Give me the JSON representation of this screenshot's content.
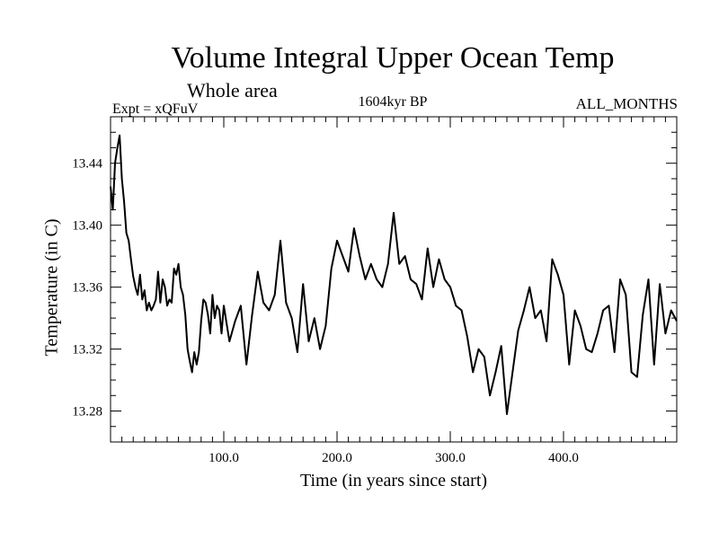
{
  "chart_data": {
    "type": "line",
    "title": "Volume Integral Upper Ocean Temp",
    "subtitle": "Whole area",
    "experiment": "Expt = xQFuV",
    "period": "1604kyr BP",
    "months": "ALL_MONTHS",
    "xlabel": "Time (in years since start)",
    "ylabel": "Temperature (in C)",
    "xlim": [
      0,
      500
    ],
    "ylim": [
      13.26,
      13.47
    ],
    "xticks": [
      100,
      200,
      300,
      400
    ],
    "xtick_labels": [
      "100.0",
      "200.0",
      "300.0",
      "400.0"
    ],
    "yticks": [
      13.28,
      13.32,
      13.36,
      13.4,
      13.44
    ],
    "ytick_labels": [
      "13.28",
      "13.32",
      "13.36",
      "13.40",
      "13.44"
    ],
    "grid": false,
    "series": [
      {
        "name": "Volume Integral Upper Ocean Temp",
        "x": [
          0,
          2,
          4,
          6,
          8,
          10,
          12,
          14,
          16,
          18,
          20,
          22,
          24,
          26,
          28,
          30,
          32,
          34,
          36,
          38,
          40,
          42,
          44,
          46,
          48,
          50,
          52,
          54,
          56,
          58,
          60,
          62,
          64,
          66,
          68,
          70,
          72,
          74,
          76,
          78,
          80,
          82,
          84,
          86,
          88,
          90,
          92,
          94,
          96,
          98,
          100,
          105,
          110,
          115,
          120,
          125,
          130,
          135,
          140,
          145,
          150,
          155,
          160,
          165,
          170,
          175,
          180,
          185,
          190,
          195,
          200,
          205,
          210,
          215,
          220,
          225,
          230,
          235,
          240,
          245,
          250,
          255,
          260,
          265,
          270,
          275,
          280,
          285,
          290,
          295,
          300,
          305,
          310,
          315,
          320,
          325,
          330,
          335,
          340,
          345,
          350,
          355,
          360,
          365,
          370,
          375,
          380,
          385,
          390,
          395,
          400,
          405,
          410,
          415,
          420,
          425,
          430,
          435,
          440,
          445,
          450,
          455,
          460,
          465,
          470,
          475,
          480,
          485,
          490,
          495,
          500
        ],
        "y": [
          13.425,
          13.41,
          13.44,
          13.45,
          13.458,
          13.43,
          13.415,
          13.395,
          13.39,
          13.378,
          13.367,
          13.36,
          13.355,
          13.368,
          13.352,
          13.358,
          13.345,
          13.35,
          13.345,
          13.348,
          13.352,
          13.37,
          13.35,
          13.365,
          13.36,
          13.348,
          13.352,
          13.35,
          13.372,
          13.368,
          13.375,
          13.36,
          13.355,
          13.342,
          13.32,
          13.312,
          13.305,
          13.318,
          13.31,
          13.318,
          13.338,
          13.352,
          13.35,
          13.342,
          13.33,
          13.355,
          13.34,
          13.348,
          13.345,
          13.33,
          13.348,
          13.325,
          13.338,
          13.348,
          13.31,
          13.342,
          13.37,
          13.35,
          13.345,
          13.355,
          13.39,
          13.35,
          13.34,
          13.318,
          13.362,
          13.325,
          13.34,
          13.32,
          13.335,
          13.372,
          13.39,
          13.38,
          13.37,
          13.398,
          13.38,
          13.365,
          13.375,
          13.365,
          13.36,
          13.375,
          13.408,
          13.375,
          13.38,
          13.365,
          13.362,
          13.352,
          13.385,
          13.36,
          13.378,
          13.365,
          13.36,
          13.348,
          13.345,
          13.328,
          13.305,
          13.32,
          13.315,
          13.29,
          13.305,
          13.322,
          13.278,
          13.305,
          13.332,
          13.345,
          13.36,
          13.34,
          13.345,
          13.325,
          13.378,
          13.368,
          13.355,
          13.31,
          13.345,
          13.335,
          13.32,
          13.318,
          13.33,
          13.345,
          13.348,
          13.318,
          13.365,
          13.355,
          13.305,
          13.302,
          13.342,
          13.365,
          13.31,
          13.362,
          13.33,
          13.345,
          13.338
        ]
      }
    ]
  }
}
